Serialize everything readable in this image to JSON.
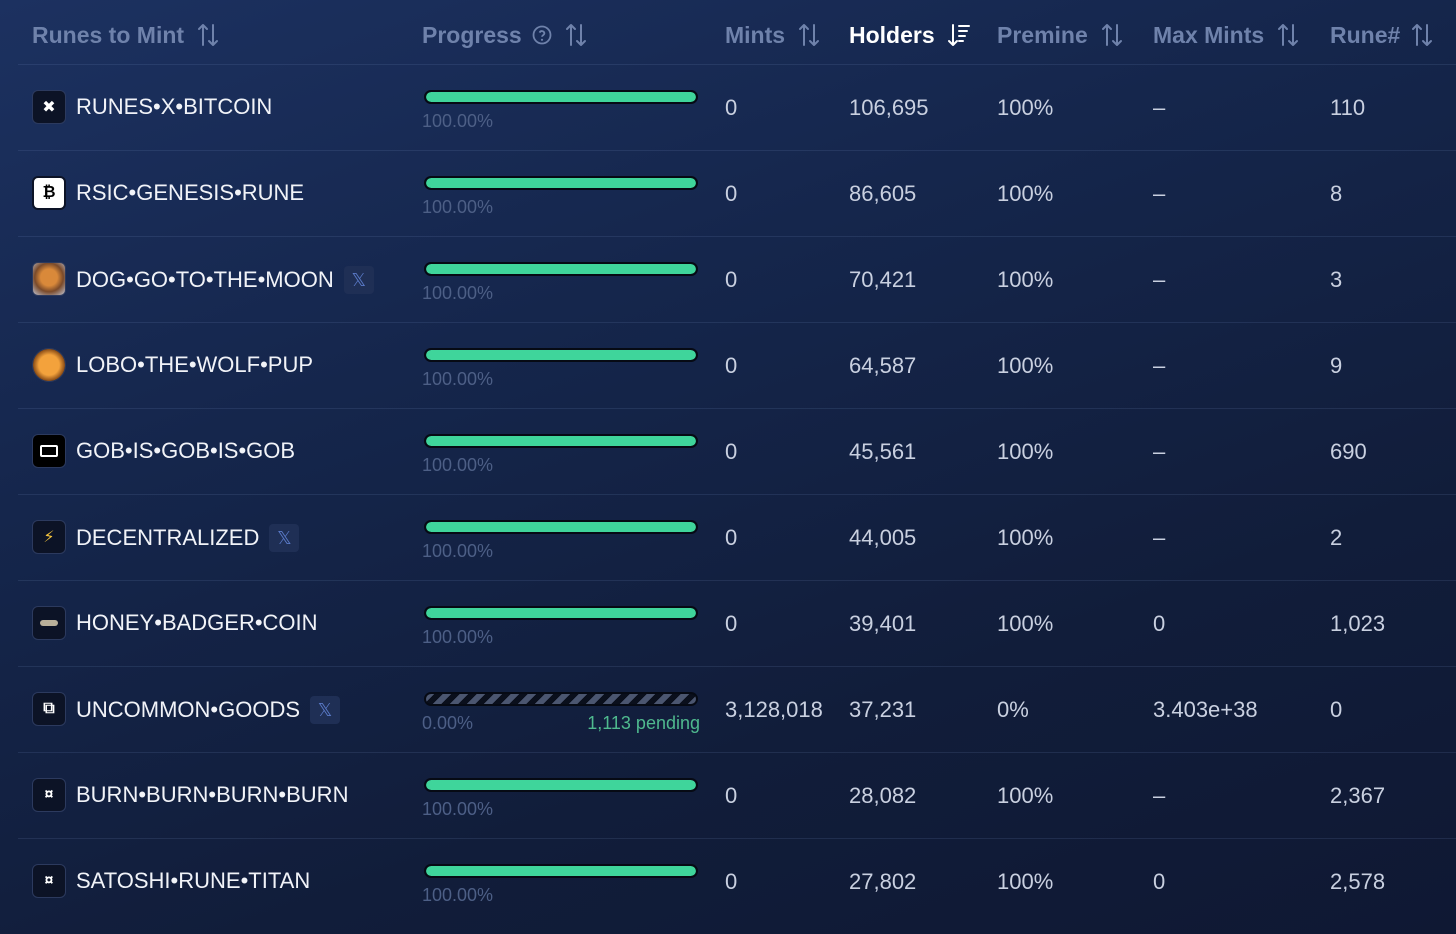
{
  "headers": {
    "runes": "Runes to Mint",
    "progress": "Progress",
    "mints": "Mints",
    "holders": "Holders",
    "premine": "Premine",
    "max_mints": "Max Mints",
    "rune_num": "Rune#"
  },
  "colors": {
    "accent": "#3fd59b",
    "pending": "#4fb98e",
    "header": "#6f82ab"
  },
  "rows": [
    {
      "icon": "x-mark-icon",
      "icon_glyph": "✖",
      "name": "RUNES•X•BITCOIN",
      "x_badge": false,
      "progress": 1.0,
      "progress_label": "100.00%",
      "pending": "",
      "mints": "0",
      "holders": "106,695",
      "premine": "100%",
      "max_mints": "–",
      "rune_num": "110"
    },
    {
      "icon": "bitcoin-icon",
      "icon_glyph": "₿",
      "name": "RSIC•GENESIS•RUNE",
      "x_badge": false,
      "progress": 1.0,
      "progress_label": "100.00%",
      "pending": "",
      "mints": "0",
      "holders": "86,605",
      "premine": "100%",
      "max_mints": "–",
      "rune_num": "8"
    },
    {
      "icon": "dog-avatar-icon",
      "icon_glyph": "",
      "name": "DOG•GO•TO•THE•MOON",
      "x_badge": true,
      "progress": 1.0,
      "progress_label": "100.00%",
      "pending": "",
      "mints": "0",
      "holders": "70,421",
      "premine": "100%",
      "max_mints": "–",
      "rune_num": "3"
    },
    {
      "icon": "wolf-pup-icon",
      "icon_glyph": "",
      "name": "LOBO•THE•WOLF•PUP",
      "x_badge": false,
      "progress": 1.0,
      "progress_label": "100.00%",
      "pending": "",
      "mints": "0",
      "holders": "64,587",
      "premine": "100%",
      "max_mints": "–",
      "rune_num": "9"
    },
    {
      "icon": "gob-face-icon",
      "icon_glyph": "",
      "name": "GOB•IS•GOB•IS•GOB",
      "x_badge": false,
      "progress": 1.0,
      "progress_label": "100.00%",
      "pending": "",
      "mints": "0",
      "holders": "45,561",
      "premine": "100%",
      "max_mints": "–",
      "rune_num": "690"
    },
    {
      "icon": "lightning-icon",
      "icon_glyph": "⚡",
      "name": "DECENTRALIZED",
      "x_badge": true,
      "progress": 1.0,
      "progress_label": "100.00%",
      "pending": "",
      "mints": "0",
      "holders": "44,005",
      "premine": "100%",
      "max_mints": "–",
      "rune_num": "2"
    },
    {
      "icon": "badger-icon",
      "icon_glyph": "",
      "name": "HONEY•BADGER•COIN",
      "x_badge": false,
      "progress": 1.0,
      "progress_label": "100.00%",
      "pending": "",
      "mints": "0",
      "holders": "39,401",
      "premine": "100%",
      "max_mints": "0",
      "rune_num": "1,023"
    },
    {
      "icon": "goods-box-icon",
      "icon_glyph": "⧉",
      "name": "UNCOMMON•GOODS",
      "x_badge": true,
      "progress": 0.0,
      "progress_label": "0.00%",
      "pending": "1,113 pending",
      "mints": "3,128,018",
      "holders": "37,231",
      "premine": "0%",
      "max_mints": "3.403e+38",
      "rune_num": "0"
    },
    {
      "icon": "rune-symbol-icon",
      "icon_glyph": "¤",
      "name": "BURN•BURN•BURN•BURN",
      "x_badge": false,
      "progress": 1.0,
      "progress_label": "100.00%",
      "pending": "",
      "mints": "0",
      "holders": "28,082",
      "premine": "100%",
      "max_mints": "–",
      "rune_num": "2,367"
    },
    {
      "icon": "rune-symbol-icon",
      "icon_glyph": "¤",
      "name": "SATOSHI•RUNE•TITAN",
      "x_badge": false,
      "progress": 1.0,
      "progress_label": "100.00%",
      "pending": "",
      "mints": "0",
      "holders": "27,802",
      "premine": "100%",
      "max_mints": "0",
      "rune_num": "2,578"
    }
  ]
}
